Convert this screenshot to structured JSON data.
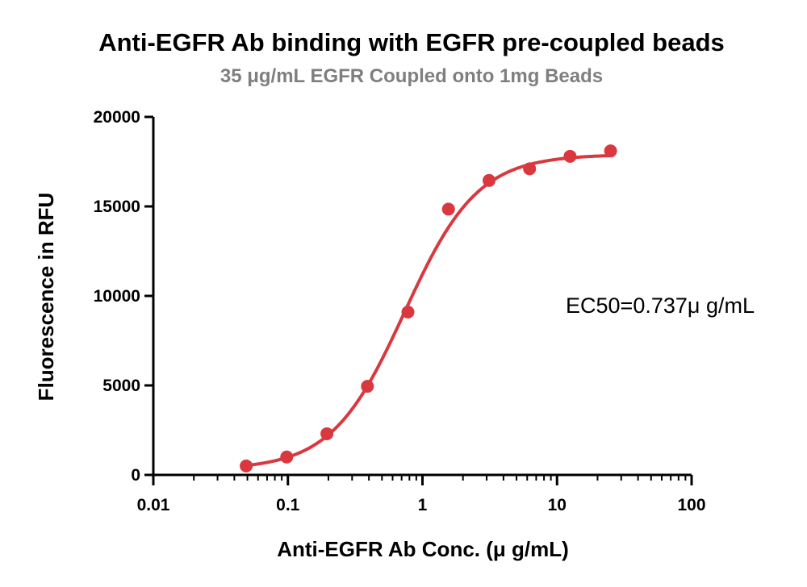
{
  "chart_data": {
    "type": "scatter",
    "title": "Anti-EGFR Ab binding with EGFR pre-coupled beads",
    "subtitle": "35 μg/mL EGFR Coupled onto 1mg Beads",
    "xlabel": "Anti-EGFR Ab Conc. (μ g/mL)",
    "ylabel": "Fluorescence in RFU",
    "x_scale": "log",
    "xlim": [
      0.01,
      100
    ],
    "ylim": [
      0,
      20000
    ],
    "x_ticks": [
      "0.01",
      "0.1",
      "1",
      "10",
      "100"
    ],
    "y_ticks": [
      "0",
      "5000",
      "10000",
      "15000",
      "20000"
    ],
    "grid": false,
    "series": [
      {
        "color": "#d9393e",
        "points": [
          {
            "x": 0.049,
            "y": 500
          },
          {
            "x": 0.098,
            "y": 1000
          },
          {
            "x": 0.195,
            "y": 2300
          },
          {
            "x": 0.39,
            "y": 4950
          },
          {
            "x": 0.78,
            "y": 9100
          },
          {
            "x": 1.56,
            "y": 14850
          },
          {
            "x": 3.125,
            "y": 16450
          },
          {
            "x": 6.25,
            "y": 17100
          },
          {
            "x": 12.5,
            "y": 17800
          },
          {
            "x": 25,
            "y": 18100
          }
        ]
      }
    ],
    "fit": {
      "model": "4PL",
      "bottom": 300,
      "top": 17900,
      "ec50": 0.737,
      "hill": 1.6,
      "x_range": [
        0.049,
        25
      ],
      "color": "#d9393e"
    },
    "annotation": "EC50=0.737μ g/mL"
  }
}
